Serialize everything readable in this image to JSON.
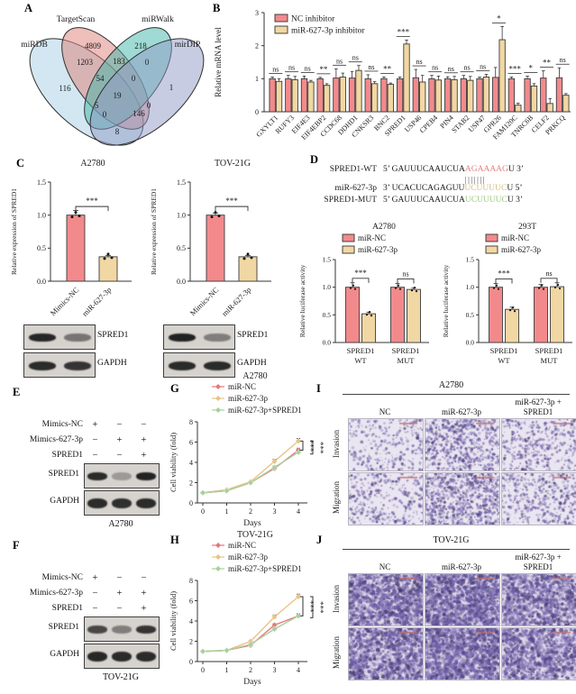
{
  "colors": {
    "pink": "#F28A8C",
    "pink_stroke": "#3c3c3c",
    "tan": "#F1D7A3",
    "tan_stroke": "#3c3c3c",
    "green": "#A9CF9C",
    "line_pink": "#E4787C",
    "line_tan": "#E8C386",
    "line_green": "#A9CF9C",
    "axis": "#333333",
    "venn": {
      "miRDB": "#A5CFE3",
      "TargetScan": "#DD7F77",
      "miRWalk": "#3FB5A9",
      "mirDIP": "#8F9AC6"
    },
    "micro_bg_light": "#EAE6F1",
    "micro_bg_dense": "#DFD8EA",
    "micro_dot_hue": "purple",
    "scalebar": "rgba(195,110,110,0.85)"
  },
  "panels": {
    "A": {
      "label": "A",
      "sets": [
        "miRDB",
        "TargetScan",
        "miRWalk",
        "mirDIP"
      ],
      "counts": {
        "A_only": "116",
        "B_only": "4809",
        "C_only": "218",
        "D_only": "1",
        "AB": "1203",
        "BC": "183",
        "CD": "0",
        "AC": "5",
        "BD": "0",
        "AD": "8",
        "ABC": "54",
        "BCD": "0",
        "ACD": "0",
        "ABD": "146",
        "ABCD": "19"
      }
    },
    "B": {
      "label": "B",
      "ylabel": "Relative mRNA level",
      "ylim": [
        0,
        3
      ],
      "yticks": [
        "0",
        "1",
        "2",
        "3"
      ],
      "legend": [
        "NC inhibitor",
        "miR-627-3p inhibitor"
      ],
      "genes": [
        "GXYLT1",
        "RUFY3",
        "EIF4E3",
        "EIF4EBP2",
        "CCDC68",
        "DDHD1",
        "CNKSR3",
        "BNC2",
        "SPRED1",
        "USP46",
        "CPEB4",
        "PIN4",
        "STAB2",
        "USP47",
        "GPR26",
        "FAM120C",
        "TNRC6B",
        "CELF2",
        "PRKCQ"
      ],
      "nc": [
        1.0,
        1.0,
        1.0,
        1.0,
        1.02,
        1.02,
        1.0,
        1.0,
        1.0,
        1.03,
        1.0,
        1.0,
        1.0,
        1.0,
        1.04,
        1.0,
        1.0,
        1.02,
        1.03
      ],
      "nc_err": [
        0.05,
        0.1,
        0.08,
        0.04,
        0.28,
        0.2,
        0.12,
        0.05,
        0.05,
        0.25,
        0.1,
        0.06,
        0.1,
        0.05,
        0.3,
        0.05,
        0.08,
        0.22,
        0.3
      ],
      "inh": [
        0.92,
        0.97,
        0.9,
        0.8,
        1.05,
        1.25,
        0.85,
        0.83,
        2.05,
        0.9,
        0.96,
        0.97,
        0.95,
        1.05,
        2.18,
        0.2,
        0.78,
        0.25,
        0.5
      ],
      "inh_err": [
        0.08,
        0.1,
        0.05,
        0.05,
        0.12,
        0.15,
        0.06,
        0.04,
        0.12,
        0.2,
        0.12,
        0.1,
        0.12,
        0.08,
        0.4,
        0.06,
        0.07,
        0.15,
        0.05
      ],
      "sig": [
        "ns",
        "ns",
        "ns",
        "**",
        "ns",
        "ns",
        "ns",
        "**",
        "***",
        "ns",
        "ns",
        "ns",
        "ns",
        "ns",
        "*",
        "***",
        "*",
        "**",
        "ns"
      ]
    },
    "C": {
      "label": "C",
      "ylabel": "Relative expression of SPRED1",
      "yticks": [
        "0.0",
        "0.5",
        "1.0",
        "1.5"
      ],
      "subpanels": [
        {
          "title": "A2780",
          "categories": [
            "Mimics-NC",
            "miR-627-3p"
          ],
          "values": [
            1.0,
            0.37
          ],
          "errors": [
            0.07,
            0.02
          ],
          "sig": "***",
          "blots": [
            {
              "label": "SPRED1",
              "bands": [
                0.92,
                0.5
              ]
            },
            {
              "label": "GAPDH",
              "bands": [
                0.9,
                0.85
              ]
            }
          ]
        },
        {
          "title": "TOV-21G",
          "categories": [
            "Mimics-NC",
            "miR-627-3p"
          ],
          "values": [
            1.0,
            0.37
          ],
          "errors": [
            0.03,
            0.02
          ],
          "sig": "***",
          "blots": [
            {
              "label": "SPRED1",
              "bands": [
                0.95,
                0.45
              ]
            },
            {
              "label": "GAPDH",
              "bands": [
                0.9,
                0.9
              ]
            }
          ]
        }
      ]
    },
    "D": {
      "label": "D",
      "alignment": [
        {
          "name": "SPRED1-WT",
          "pre": "5’ GAUUUCAAUCUA",
          "hl": "AGAAAAG",
          "post": "U 3’",
          "cls": "hl-red"
        },
        {
          "name": "miR-627-3p",
          "pre": "3’ UCACUCAGAGUU",
          "hl": "UCUUUUC",
          "post": "U 5’",
          "cls": "hl-tan"
        },
        {
          "name": "SPRED1-MUT",
          "pre": "5’ GAUUUCAAUCUA",
          "hl": "UCUUUUC",
          "post": "U 3’",
          "cls": "hl-green"
        }
      ],
      "pairs": "|||||||",
      "ylabel": "Relative luciferase activity",
      "yticks": [
        "0.0",
        "0.5",
        "1.0",
        "1.5"
      ],
      "legend": [
        "miR-NC",
        "miR-627-3p"
      ],
      "charts": [
        {
          "title": "A2780",
          "groups": [
            [
              "SPRED1",
              "WT"
            ],
            [
              "SPRED1",
              "MUT"
            ]
          ],
          "nc": [
            1.0,
            1.0
          ],
          "nc_err": [
            0.08,
            0.07
          ],
          "mi": [
            0.52,
            0.96
          ],
          "mi_err": [
            0.03,
            0.03
          ],
          "sig": [
            "***",
            "ns"
          ]
        },
        {
          "title": "293T",
          "groups": [
            [
              "SPRED1",
              "WT"
            ],
            [
              "SPRED1",
              "MUT"
            ]
          ],
          "nc": [
            1.0,
            1.0
          ],
          "nc_err": [
            0.07,
            0.05
          ],
          "mi": [
            0.6,
            1.01
          ],
          "mi_err": [
            0.04,
            0.07
          ],
          "sig": [
            "***",
            "ns"
          ]
        }
      ]
    },
    "E": {
      "label": "E",
      "conditions": [
        [
          "Mimics-NC",
          "+",
          "−",
          "−"
        ],
        [
          "Mimics-627-3p",
          "−",
          "+",
          "+"
        ],
        [
          "SPRED1",
          "−",
          "−",
          "+"
        ]
      ],
      "blots": [
        {
          "label": "SPRED1",
          "bands": [
            0.9,
            0.3,
            0.95
          ]
        },
        {
          "label": "GAPDH",
          "bands": [
            0.9,
            0.88,
            0.9
          ]
        }
      ],
      "cell_line": "A2780"
    },
    "F": {
      "label": "F",
      "conditions": [
        [
          "Mimics-NC",
          "+",
          "−",
          "−"
        ],
        [
          "Mimics-627-3p",
          "−",
          "+",
          "+"
        ],
        [
          "SPRED1",
          "−",
          "−",
          "+"
        ]
      ],
      "blots": [
        {
          "label": "SPRED1",
          "bands": [
            0.75,
            0.45,
            0.85
          ]
        },
        {
          "label": "GAPDH",
          "bands": [
            0.92,
            0.9,
            0.9
          ]
        }
      ],
      "cell_line": "TOV-21G"
    },
    "G": {
      "label": "G",
      "title": "A2780",
      "xlabel": "Days",
      "ylabel": "Cell viability (fold)",
      "ylim": [
        0,
        8
      ],
      "yticks": [
        "0",
        "2",
        "4",
        "6",
        "8"
      ],
      "x": [
        "0",
        "1",
        "2",
        "3",
        "4"
      ],
      "series": [
        {
          "name": "miR-NC",
          "values": [
            1,
            1.2,
            2.0,
            3.4,
            5.2
          ],
          "errors": [
            0,
            0,
            0.08,
            0.12,
            0.2
          ]
        },
        {
          "name": "miR-627-3p",
          "values": [
            1,
            1.3,
            2.1,
            4.1,
            6.1
          ],
          "errors": [
            0,
            0.05,
            0.1,
            0.2,
            0.25
          ]
        },
        {
          "name": "miR-627-3p+SPRED1",
          "values": [
            1,
            1.2,
            2.0,
            3.5,
            5.0
          ],
          "errors": [
            0,
            0,
            0.08,
            0.15,
            0.2
          ]
        }
      ],
      "sig": [
        "***",
        "***"
      ]
    },
    "H": {
      "label": "H",
      "title": "TOV-21G",
      "xlabel": "Days",
      "ylabel": "Cell viability (fold)",
      "ylim": [
        0,
        8
      ],
      "yticks": [
        "0",
        "2",
        "4",
        "6",
        "8"
      ],
      "x": [
        "0",
        "1",
        "2",
        "3",
        "4"
      ],
      "series": [
        {
          "name": "miR-NC",
          "values": [
            1,
            1.1,
            1.6,
            3.6,
            4.5
          ],
          "errors": [
            0,
            0,
            0.08,
            0.15,
            0.2
          ]
        },
        {
          "name": "miR-627-3p",
          "values": [
            1,
            1.1,
            2.0,
            4.4,
            6.4
          ],
          "errors": [
            0,
            0.05,
            0.1,
            0.2,
            0.25
          ]
        },
        {
          "name": "miR-627-3p+SPRED1",
          "values": [
            1,
            1.1,
            1.7,
            3.2,
            4.5
          ],
          "errors": [
            0,
            0,
            0.08,
            0.15,
            0.2
          ]
        }
      ],
      "sig": [
        "***",
        "***"
      ]
    },
    "I": {
      "label": "I",
      "title": "A2780",
      "columns": [
        [
          "NC"
        ],
        [
          "miR-627-3p"
        ],
        [
          "miR-627-3p +",
          "SPRED1"
        ]
      ],
      "rows": [
        "Invasion",
        "Migration"
      ],
      "densities": [
        [
          0.3,
          0.62,
          0.4
        ],
        [
          0.35,
          0.8,
          0.42
        ]
      ]
    },
    "J": {
      "label": "J",
      "title": "TOV-21G",
      "columns": [
        [
          "NC"
        ],
        [
          "miR-627-3p"
        ],
        [
          "miR-627-3p +",
          "SPRED1"
        ]
      ],
      "rows": [
        "Invasion",
        "Migration"
      ],
      "densities": [
        [
          0.85,
          0.98,
          0.72
        ],
        [
          0.8,
          0.98,
          0.68
        ]
      ]
    }
  }
}
